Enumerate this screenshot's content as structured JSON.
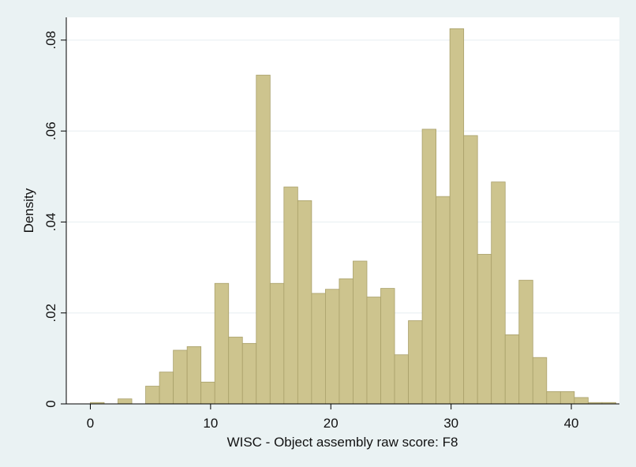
{
  "chart_data": {
    "type": "bar",
    "title": "",
    "xlabel": "WISC - Object assembly raw score: F8",
    "ylabel": "Density",
    "xlim": [
      -2,
      44
    ],
    "ylim": [
      0,
      0.085
    ],
    "grid": true,
    "x_ticks": [
      0,
      10,
      20,
      30,
      40
    ],
    "x_tick_labels": [
      "0",
      "10",
      "20",
      "30",
      "40"
    ],
    "y_ticks": [
      0,
      0.02,
      0.04,
      0.06,
      0.08
    ],
    "y_tick_labels": [
      "0",
      ".02",
      ".04",
      ".06",
      ".08"
    ],
    "bar_color": "#cdc48e",
    "bar_edge_color": "#a9a06a",
    "background_color": "#eaf2f3",
    "plot_background_color": "#ffffff",
    "bins": [
      {
        "x0": 0.0,
        "x1": 1.15,
        "density": 0.0003
      },
      {
        "x0": 1.15,
        "x1": 2.3,
        "density": 0.0
      },
      {
        "x0": 2.3,
        "x1": 3.45,
        "density": 0.0011
      },
      {
        "x0": 3.45,
        "x1": 4.6,
        "density": 0.0
      },
      {
        "x0": 4.6,
        "x1": 5.75,
        "density": 0.0039
      },
      {
        "x0": 5.75,
        "x1": 6.9,
        "density": 0.007
      },
      {
        "x0": 6.9,
        "x1": 8.05,
        "density": 0.0118
      },
      {
        "x0": 8.05,
        "x1": 9.2,
        "density": 0.0126
      },
      {
        "x0": 9.2,
        "x1": 10.35,
        "density": 0.0048
      },
      {
        "x0": 10.35,
        "x1": 11.5,
        "density": 0.0265
      },
      {
        "x0": 11.5,
        "x1": 12.65,
        "density": 0.0147
      },
      {
        "x0": 12.65,
        "x1": 13.8,
        "density": 0.0133
      },
      {
        "x0": 13.8,
        "x1": 14.95,
        "density": 0.0723
      },
      {
        "x0": 14.95,
        "x1": 16.1,
        "density": 0.0265
      },
      {
        "x0": 16.1,
        "x1": 17.25,
        "density": 0.0477
      },
      {
        "x0": 17.25,
        "x1": 18.4,
        "density": 0.0447
      },
      {
        "x0": 18.4,
        "x1": 19.55,
        "density": 0.0243
      },
      {
        "x0": 19.55,
        "x1": 20.7,
        "density": 0.0252
      },
      {
        "x0": 20.7,
        "x1": 21.85,
        "density": 0.0275
      },
      {
        "x0": 21.85,
        "x1": 23.0,
        "density": 0.0314
      },
      {
        "x0": 23.0,
        "x1": 24.15,
        "density": 0.0235
      },
      {
        "x0": 24.15,
        "x1": 25.3,
        "density": 0.0254
      },
      {
        "x0": 25.3,
        "x1": 26.45,
        "density": 0.0108
      },
      {
        "x0": 26.45,
        "x1": 27.6,
        "density": 0.0183
      },
      {
        "x0": 27.6,
        "x1": 28.75,
        "density": 0.0604
      },
      {
        "x0": 28.75,
        "x1": 29.9,
        "density": 0.0456
      },
      {
        "x0": 29.9,
        "x1": 31.05,
        "density": 0.0825
      },
      {
        "x0": 31.05,
        "x1": 32.2,
        "density": 0.059
      },
      {
        "x0": 32.2,
        "x1": 33.35,
        "density": 0.0329
      },
      {
        "x0": 33.35,
        "x1": 34.5,
        "density": 0.0488
      },
      {
        "x0": 34.5,
        "x1": 35.65,
        "density": 0.0152
      },
      {
        "x0": 35.65,
        "x1": 36.8,
        "density": 0.0272
      },
      {
        "x0": 36.8,
        "x1": 37.95,
        "density": 0.0102
      },
      {
        "x0": 37.95,
        "x1": 39.1,
        "density": 0.0027
      },
      {
        "x0": 39.1,
        "x1": 40.25,
        "density": 0.0027
      },
      {
        "x0": 40.25,
        "x1": 41.4,
        "density": 0.0014
      },
      {
        "x0": 41.4,
        "x1": 42.55,
        "density": 0.0003
      },
      {
        "x0": 42.55,
        "x1": 43.7,
        "density": 0.0003
      }
    ]
  }
}
